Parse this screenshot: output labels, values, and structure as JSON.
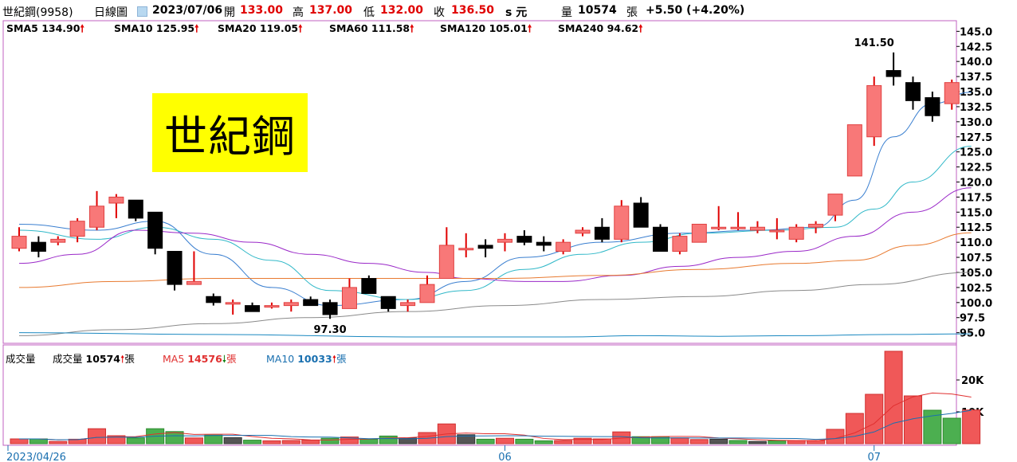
{
  "header": {
    "stock_name": "世紀鋼(9958)",
    "chart_type": "日線圖",
    "date": "2023/07/06",
    "open_label": "開",
    "open": "133.00",
    "high_label": "高",
    "high": "137.00",
    "low_label": "低",
    "low": "132.00",
    "close_label": "收",
    "close": "136.50",
    "unit": "s 元",
    "volume_label": "量",
    "volume": "10574",
    "volume_unit": "張",
    "change": "+5.50 (+4.20%)"
  },
  "sma_legend": [
    {
      "label": "SMA5",
      "value": "134.90",
      "color": "#3a7fd0",
      "arrow": "up"
    },
    {
      "label": "SMA10",
      "value": "125.95",
      "color": "#30b8c8",
      "arrow": "up"
    },
    {
      "label": "SMA20",
      "value": "119.05",
      "color": "#9a28c8",
      "arrow": "up"
    },
    {
      "label": "SMA60",
      "value": "111.58",
      "color": "#e87a30",
      "arrow": "up"
    },
    {
      "label": "SMA120",
      "value": "105.01",
      "color": "#8a8a8a",
      "arrow": "up"
    },
    {
      "label": "SMA240",
      "value": "94.62",
      "color": "#1a88c0",
      "arrow": "up"
    }
  ],
  "stock_label": "世紀鋼",
  "volume_legend": {
    "title": "成交量",
    "vol_label": "成交量",
    "vol_value": "10574",
    "vol_arrow": "up",
    "vol_unit": "張",
    "ma5_label": "MA5",
    "ma5_value": "14576",
    "ma5_arrow": "down",
    "ma5_unit": "張",
    "ma10_label": "MA10",
    "ma10_value": "10033",
    "ma10_arrow": "up",
    "ma10_unit": "張"
  },
  "chart_data": {
    "type": "candlestick",
    "price_ylim": [
      93.5,
      146.5
    ],
    "price_ticks": [
      "145.0",
      "142.5",
      "140.0",
      "137.5",
      "135.0",
      "132.5",
      "130.0",
      "127.5",
      "125.0",
      "122.5",
      "120.0",
      "117.5",
      "115.0",
      "112.5",
      "110.0",
      "107.5",
      "105.0",
      "102.5",
      "100.0",
      "97.5",
      "95.0"
    ],
    "volume_ticks": [
      {
        "label": "20K",
        "value": 20000
      },
      {
        "label": "10K",
        "value": 10000
      }
    ],
    "volume_ylim": [
      0,
      30000
    ],
    "x_labels": [
      {
        "label": "2023/04/26",
        "index": 0
      },
      {
        "label": "06",
        "index": 25
      },
      {
        "label": "07",
        "index": 44
      }
    ],
    "annotations": [
      {
        "text": "141.50",
        "index": 44,
        "value": 141.5
      },
      {
        "text": "97.30",
        "index": 16,
        "value": 97.3
      }
    ],
    "candles": [
      {
        "o": 109.0,
        "h": 112.5,
        "l": 108.5,
        "c": 111.0
      },
      {
        "o": 110.0,
        "h": 111.0,
        "l": 107.5,
        "c": 108.5
      },
      {
        "o": 110.0,
        "h": 111.0,
        "l": 109.5,
        "c": 110.5
      },
      {
        "o": 111.0,
        "h": 114.0,
        "l": 110.0,
        "c": 113.5
      },
      {
        "o": 112.5,
        "h": 118.5,
        "l": 112.0,
        "c": 116.0
      },
      {
        "o": 116.5,
        "h": 118.0,
        "l": 114.0,
        "c": 117.5
      },
      {
        "o": 117.0,
        "h": 117.0,
        "l": 113.5,
        "c": 114.0
      },
      {
        "o": 115.0,
        "h": 115.0,
        "l": 108.0,
        "c": 109.0
      },
      {
        "o": 108.5,
        "h": 108.5,
        "l": 102.0,
        "c": 103.0
      },
      {
        "o": 103.0,
        "h": 108.5,
        "l": 103.0,
        "c": 103.5
      },
      {
        "o": 101.0,
        "h": 101.5,
        "l": 99.5,
        "c": 100.0
      },
      {
        "o": 100.0,
        "h": 100.5,
        "l": 98.0,
        "c": 100.0
      },
      {
        "o": 99.5,
        "h": 100.0,
        "l": 98.5,
        "c": 98.5
      },
      {
        "o": 99.5,
        "h": 100.0,
        "l": 99.0,
        "c": 99.5
      },
      {
        "o": 99.5,
        "h": 100.5,
        "l": 98.5,
        "c": 100.0
      },
      {
        "o": 100.5,
        "h": 101.0,
        "l": 99.5,
        "c": 99.5
      },
      {
        "o": 100.0,
        "h": 100.5,
        "l": 97.3,
        "c": 98.0
      },
      {
        "o": 99.0,
        "h": 104.0,
        "l": 99.0,
        "c": 102.5
      },
      {
        "o": 104.0,
        "h": 104.5,
        "l": 101.5,
        "c": 101.5
      },
      {
        "o": 101.0,
        "h": 101.0,
        "l": 98.5,
        "c": 99.0
      },
      {
        "o": 99.5,
        "h": 100.5,
        "l": 98.5,
        "c": 100.0
      },
      {
        "o": 100.0,
        "h": 104.5,
        "l": 100.0,
        "c": 103.0
      },
      {
        "o": 104.0,
        "h": 112.5,
        "l": 104.0,
        "c": 109.5
      },
      {
        "o": 109.0,
        "h": 111.5,
        "l": 107.5,
        "c": 109.0
      },
      {
        "o": 109.5,
        "h": 110.5,
        "l": 107.5,
        "c": 109.0
      },
      {
        "o": 110.0,
        "h": 111.5,
        "l": 108.5,
        "c": 110.5
      },
      {
        "o": 111.0,
        "h": 112.0,
        "l": 109.5,
        "c": 110.0
      },
      {
        "o": 110.0,
        "h": 111.0,
        "l": 108.5,
        "c": 109.5
      },
      {
        "o": 108.5,
        "h": 110.5,
        "l": 108.0,
        "c": 110.0
      },
      {
        "o": 111.5,
        "h": 112.5,
        "l": 111.0,
        "c": 112.0
      },
      {
        "o": 112.5,
        "h": 114.0,
        "l": 110.0,
        "c": 110.5
      },
      {
        "o": 110.5,
        "h": 117.0,
        "l": 110.0,
        "c": 116.0
      },
      {
        "o": 116.5,
        "h": 117.5,
        "l": 112.5,
        "c": 112.5
      },
      {
        "o": 112.5,
        "h": 113.0,
        "l": 108.5,
        "c": 108.5
      },
      {
        "o": 108.5,
        "h": 111.5,
        "l": 108.0,
        "c": 111.0
      },
      {
        "o": 110.0,
        "h": 113.0,
        "l": 110.0,
        "c": 113.0
      },
      {
        "o": 112.5,
        "h": 116.0,
        "l": 112.0,
        "c": 112.5
      },
      {
        "o": 112.5,
        "h": 115.0,
        "l": 112.0,
        "c": 112.5
      },
      {
        "o": 112.0,
        "h": 113.5,
        "l": 111.5,
        "c": 112.5
      },
      {
        "o": 112.0,
        "h": 114.0,
        "l": 110.5,
        "c": 112.0
      },
      {
        "o": 110.5,
        "h": 113.0,
        "l": 110.0,
        "c": 112.5
      },
      {
        "o": 112.5,
        "h": 113.5,
        "l": 111.5,
        "c": 113.0
      },
      {
        "o": 114.5,
        "h": 118.0,
        "l": 113.5,
        "c": 118.0
      },
      {
        "o": 121.0,
        "h": 129.5,
        "l": 121.0,
        "c": 129.5
      },
      {
        "o": 127.5,
        "h": 137.5,
        "l": 126.0,
        "c": 136.0
      },
      {
        "o": 138.5,
        "h": 141.5,
        "l": 136.0,
        "c": 137.5
      },
      {
        "o": 136.5,
        "h": 137.5,
        "l": 132.0,
        "c": 133.5
      },
      {
        "o": 134.0,
        "h": 135.0,
        "l": 130.0,
        "c": 131.0
      },
      {
        "o": 133.0,
        "h": 137.0,
        "l": 132.0,
        "c": 136.5
      }
    ],
    "volume": [
      {
        "v": 1500,
        "color": "red"
      },
      {
        "v": 1500,
        "color": "green"
      },
      {
        "v": 700,
        "color": "red"
      },
      {
        "v": 1400,
        "color": "red"
      },
      {
        "v": 4700,
        "color": "red"
      },
      {
        "v": 2500,
        "color": "red"
      },
      {
        "v": 1800,
        "color": "green"
      },
      {
        "v": 4700,
        "color": "green"
      },
      {
        "v": 3800,
        "color": "green"
      },
      {
        "v": 1800,
        "color": "red"
      },
      {
        "v": 2700,
        "color": "green"
      },
      {
        "v": 1900,
        "color": "gray"
      },
      {
        "v": 1100,
        "color": "green"
      },
      {
        "v": 900,
        "color": "red"
      },
      {
        "v": 1000,
        "color": "red"
      },
      {
        "v": 1100,
        "color": "red"
      },
      {
        "v": 1700,
        "color": "green"
      },
      {
        "v": 2100,
        "color": "red"
      },
      {
        "v": 1400,
        "color": "green"
      },
      {
        "v": 2400,
        "color": "green"
      },
      {
        "v": 1800,
        "color": "gray"
      },
      {
        "v": 3500,
        "color": "red"
      },
      {
        "v": 6200,
        "color": "red"
      },
      {
        "v": 2800,
        "color": "gray"
      },
      {
        "v": 1400,
        "color": "green"
      },
      {
        "v": 1700,
        "color": "red"
      },
      {
        "v": 1400,
        "color": "green"
      },
      {
        "v": 900,
        "color": "green"
      },
      {
        "v": 1000,
        "color": "red"
      },
      {
        "v": 1700,
        "color": "red"
      },
      {
        "v": 1500,
        "color": "red"
      },
      {
        "v": 3700,
        "color": "red"
      },
      {
        "v": 2200,
        "color": "green"
      },
      {
        "v": 2200,
        "color": "green"
      },
      {
        "v": 1800,
        "color": "red"
      },
      {
        "v": 1300,
        "color": "red"
      },
      {
        "v": 1400,
        "color": "gray"
      },
      {
        "v": 1000,
        "color": "green"
      },
      {
        "v": 700,
        "color": "gray"
      },
      {
        "v": 900,
        "color": "green"
      },
      {
        "v": 1000,
        "color": "red"
      },
      {
        "v": 1000,
        "color": "red"
      },
      {
        "v": 4500,
        "color": "red"
      },
      {
        "v": 9500,
        "color": "red"
      },
      {
        "v": 15500,
        "color": "red"
      },
      {
        "v": 29000,
        "color": "red"
      },
      {
        "v": 15000,
        "color": "red"
      },
      {
        "v": 10500,
        "color": "green"
      },
      {
        "v": 8000,
        "color": "green"
      },
      {
        "v": 10574,
        "color": "red"
      }
    ],
    "series": [
      {
        "name": "SMA5",
        "color": "#3a7fd0",
        "pts": [
          [
            0,
            113.0
          ],
          [
            4,
            112.0
          ],
          [
            7,
            113.5
          ],
          [
            10,
            108.0
          ],
          [
            13,
            102.5
          ],
          [
            16,
            99.5
          ],
          [
            20,
            100.5
          ],
          [
            23,
            103.5
          ],
          [
            26,
            107.5
          ],
          [
            30,
            110.0
          ],
          [
            34,
            111.5
          ],
          [
            38,
            112.0
          ],
          [
            41,
            112.5
          ],
          [
            43,
            117.0
          ],
          [
            45,
            127.5
          ],
          [
            47,
            133.0
          ],
          [
            49,
            134.9
          ]
        ]
      },
      {
        "name": "SMA10",
        "color": "#30b8c8",
        "pts": [
          [
            0,
            112.0
          ],
          [
            4,
            110.5
          ],
          [
            7,
            112.5
          ],
          [
            10,
            110.5
          ],
          [
            13,
            107.0
          ],
          [
            16,
            102.0
          ],
          [
            20,
            100.5
          ],
          [
            23,
            102.0
          ],
          [
            26,
            105.5
          ],
          [
            29,
            108.0
          ],
          [
            32,
            110.0
          ],
          [
            35,
            111.5
          ],
          [
            39,
            112.0
          ],
          [
            42,
            112.5
          ],
          [
            44,
            115.5
          ],
          [
            46,
            120.0
          ],
          [
            49,
            125.95
          ]
        ]
      },
      {
        "name": "SMA20",
        "color": "#9a28c8",
        "pts": [
          [
            0,
            106.5
          ],
          [
            3,
            108.0
          ],
          [
            6,
            112.0
          ],
          [
            9,
            111.5
          ],
          [
            12,
            110.0
          ],
          [
            15,
            108.0
          ],
          [
            18,
            106.5
          ],
          [
            21,
            105.0
          ],
          [
            23,
            104.0
          ],
          [
            26,
            103.5
          ],
          [
            28,
            103.5
          ],
          [
            31,
            104.5
          ],
          [
            34,
            106.0
          ],
          [
            37,
            107.5
          ],
          [
            40,
            108.5
          ],
          [
            43,
            111.0
          ],
          [
            46,
            115.0
          ],
          [
            49,
            119.05
          ]
        ]
      },
      {
        "name": "SMA60",
        "color": "#e87a30",
        "pts": [
          [
            0,
            102.5
          ],
          [
            5,
            103.5
          ],
          [
            10,
            104.0
          ],
          [
            15,
            104.0
          ],
          [
            20,
            104.0
          ],
          [
            25,
            104.0
          ],
          [
            30,
            104.5
          ],
          [
            35,
            105.5
          ],
          [
            40,
            106.5
          ],
          [
            43,
            107.0
          ],
          [
            46,
            109.5
          ],
          [
            49,
            111.58
          ]
        ]
      },
      {
        "name": "SMA120",
        "color": "#8a8a8a",
        "pts": [
          [
            0,
            94.5
          ],
          [
            5,
            95.5
          ],
          [
            10,
            96.5
          ],
          [
            15,
            97.5
          ],
          [
            20,
            98.5
          ],
          [
            25,
            99.5
          ],
          [
            30,
            100.5
          ],
          [
            35,
            101.0
          ],
          [
            40,
            102.0
          ],
          [
            44,
            103.0
          ],
          [
            49,
            105.01
          ]
        ]
      },
      {
        "name": "SMA240",
        "color": "#1a88c0",
        "pts": [
          [
            0,
            95.0
          ],
          [
            10,
            94.7
          ],
          [
            20,
            94.3
          ],
          [
            28,
            94.3
          ],
          [
            32,
            94.5
          ],
          [
            36,
            94.4
          ],
          [
            40,
            94.5
          ],
          [
            45,
            94.7
          ],
          [
            49,
            94.8
          ]
        ]
      }
    ]
  }
}
